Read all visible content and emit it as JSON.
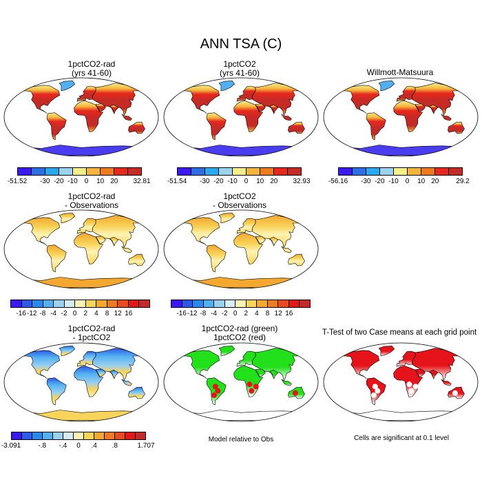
{
  "figure": {
    "title": "ANN TSA (C)"
  },
  "panels": [
    {
      "id": "p1",
      "title1": "1pctCO2-rad",
      "title2": "(yrs 41-60)",
      "style": "abs"
    },
    {
      "id": "p2",
      "title1": "1pctCO2",
      "title2": "(yrs 41-60)",
      "style": "abs"
    },
    {
      "id": "p3",
      "title1": "Willmott-Matsuura",
      "title2": "",
      "style": "abs"
    },
    {
      "id": "p4",
      "title1": "1pctCO2-rad",
      "title2": "- Observations",
      "style": "diff"
    },
    {
      "id": "p5",
      "title1": "1pctCO2",
      "title2": "- Observations",
      "style": "diff"
    },
    {
      "id": "p6",
      "title1": "1pctCO2-rad",
      "title2": "- 1pctCO2",
      "style": "mdiff"
    },
    {
      "id": "p7",
      "title1": "1pctCO2-rad (green)",
      "title2": "1pctCO2 (red)",
      "style": "compare"
    },
    {
      "id": "p8",
      "title1": "T-Test of two Case means at each grid point",
      "title2": "",
      "style": "ttest"
    }
  ],
  "colorbars": {
    "abs_colors": [
      "#3a1af2",
      "#2d6ee6",
      "#28a8ee",
      "#9bd2f0",
      "#f5ee8a",
      "#f5b43c",
      "#ee7a1e",
      "#e6281e",
      "#c42a26"
    ],
    "abs_p1_labels": [
      "-51.52",
      "-30",
      "-20",
      "-10",
      "0",
      "10",
      "20",
      "32.81"
    ],
    "abs_p2_labels": [
      "-51.54",
      "-30",
      "-20",
      "-10",
      "0",
      "10",
      "20",
      "32.93"
    ],
    "abs_p3_labels": [
      "-56.16",
      "-30",
      "-20",
      "-10",
      "0",
      "10",
      "20",
      "29.2"
    ],
    "diff_colors": [
      "#3a1af2",
      "#2d58e8",
      "#2a88ee",
      "#52b0f2",
      "#9ad0f0",
      "#d6ecf6",
      "#fff3b4",
      "#f8d45a",
      "#f4a830",
      "#ef7a22",
      "#ea4a1e",
      "#e01a1a",
      "#c42a2a"
    ],
    "diff_labels": [
      "-16",
      "-12",
      "-8",
      "-4",
      "-2",
      "0",
      "2",
      "4",
      "8",
      "12",
      "16"
    ],
    "mdiff_colors": [
      "#3a1af2",
      "#2d58e8",
      "#2a88ee",
      "#52b0f2",
      "#9ad0f0",
      "#d6ecf6",
      "#fff3b4",
      "#f8d45a",
      "#f4a830",
      "#ef7a22",
      "#ea4a1e",
      "#e01a1a",
      "#c42a2a"
    ],
    "mdiff_labels": [
      "-3.091",
      "-.8",
      "-.4",
      "0",
      ".4",
      ".8",
      "1.707"
    ]
  },
  "notes": {
    "compare": "Model relative to Obs",
    "ttest": "Cells are significant at 0.1 level"
  },
  "colors": {
    "ocean": "#ffffff",
    "coast": "#000000",
    "compare_green": "#22e01a",
    "compare_red": "#e6141a",
    "ttest_red": "#e6141a",
    "antarctica_abs": "#4a3cf0"
  }
}
